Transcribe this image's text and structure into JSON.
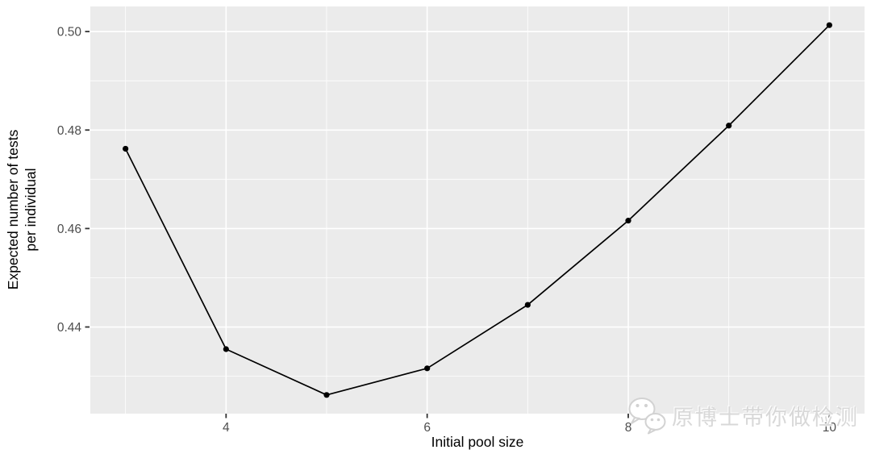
{
  "figure": {
    "background": "#FFFFFF"
  },
  "chart_data": {
    "type": "line",
    "title": "",
    "xlabel": "Initial pool size",
    "ylabel": "Expected number of tests per individual",
    "ylabel_lines": [
      "Expected number of tests",
      "per individual"
    ],
    "x": [
      3,
      4,
      5,
      6,
      7,
      8,
      9,
      10
    ],
    "y": [
      0.4762,
      0.4355,
      0.4262,
      0.4316,
      0.4445,
      0.4616,
      0.4809,
      0.5013
    ],
    "xlim": [
      2.65,
      10.35
    ],
    "ylim": [
      0.4224,
      0.5051
    ],
    "x_ticks": [
      4,
      6,
      8,
      10
    ],
    "x_tick_labels": [
      "4",
      "6",
      "8",
      "10"
    ],
    "y_ticks": [
      0.44,
      0.46,
      0.48,
      0.5
    ],
    "y_tick_labels": [
      "0.44",
      "0.46",
      "0.48",
      "0.50"
    ],
    "grid": "major+minor",
    "legend": "none",
    "style": {
      "panel_bg": "#EBEBEB",
      "grid_color": "#FFFFFF",
      "line_color": "#000000",
      "point_color": "#000000",
      "tick_label_color": "#4D4D4D",
      "axis_title_color": "#000000",
      "tick_mark_color": "#333333"
    }
  },
  "watermark": {
    "icon": "wechat-icon",
    "text": "原博士带你做检测",
    "color": "#D8D8D8"
  }
}
